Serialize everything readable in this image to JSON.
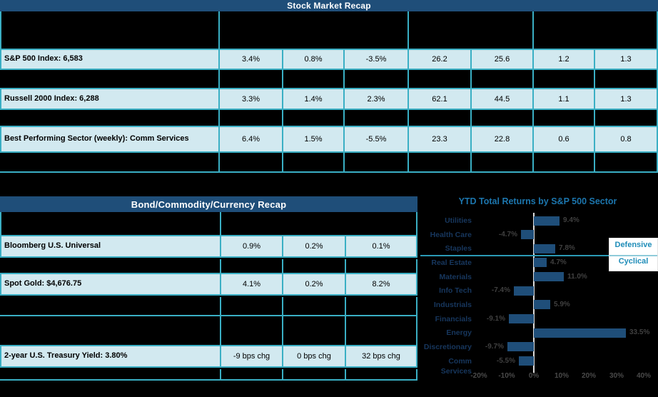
{
  "colors": {
    "navy_header": "#1F4E79",
    "row_fill": "#D2E9F0",
    "teal_border": "#3AAFC4",
    "bar_color": "#1F4E79",
    "chart_title_blue": "#1C76AE",
    "category_navy": "#17375E",
    "zone_teal": "#1E8CB8"
  },
  "stock_table": {
    "title": "Stock Market Recap",
    "rows": [
      {
        "label": "S&P 500 Index:  6,583",
        "values": [
          "3.4%",
          "0.8%",
          "-3.5%",
          "26.2",
          "25.6",
          "1.2",
          "1.3"
        ]
      },
      {
        "label": "Russell 2000 Index:  6,288",
        "values": [
          "3.3%",
          "1.4%",
          "2.3%",
          "62.1",
          "44.5",
          "1.1",
          "1.3"
        ]
      },
      {
        "label": "Best Performing Sector (weekly): Comm Services",
        "values": [
          "6.4%",
          "1.5%",
          "-5.5%",
          "23.3",
          "22.8",
          "0.6",
          "0.8"
        ]
      }
    ]
  },
  "bond_table": {
    "title": "Bond/Commodity/Currency Recap",
    "rows": [
      {
        "label": "Bloomberg U.S. Universal",
        "values": [
          "0.9%",
          "0.2%",
          "0.1%"
        ]
      },
      {
        "label": "Spot Gold: $4,676.75",
        "values": [
          "4.1%",
          "0.2%",
          "8.2%"
        ]
      },
      {
        "label": "2-year U.S.  Treasury Yield: 3.80%",
        "values": [
          "-9 bps chg",
          "0 bps chg",
          "32 bps chg"
        ]
      }
    ]
  },
  "chart_data": {
    "type": "bar",
    "orientation": "horizontal",
    "title": "YTD Total Returns by S&P 500 Sector",
    "categories": [
      "Utilities",
      "Health Care",
      "Staples",
      "Real Estate",
      "Materials",
      "Info Tech",
      "Industrials",
      "Financials",
      "Energy",
      "Discretionary",
      "Comm Services"
    ],
    "values": [
      9.4,
      -4.7,
      7.8,
      4.7,
      11.0,
      -7.4,
      5.9,
      -9.1,
      33.5,
      -9.7,
      -5.5
    ],
    "value_labels": [
      "9.4%",
      "-4.7%",
      "7.8%",
      "4.7%",
      "11.0%",
      "-7.4%",
      "5.9%",
      "-9.1%",
      "33.5%",
      "-9.7%",
      "-5.5%"
    ],
    "x_ticks": [
      "-20%",
      "-10%",
      "0%",
      "10%",
      "20%",
      "30%",
      "40%"
    ],
    "x_tick_values": [
      -20,
      -10,
      0,
      10,
      20,
      30,
      40
    ],
    "xlim": [
      -22,
      45
    ],
    "grid": false,
    "legend": "none",
    "bar_color": "#1F4E79",
    "annotations": {
      "above_line": "Defensive",
      "below_line": "Cyclical"
    },
    "separator_after_category": "Staples"
  }
}
